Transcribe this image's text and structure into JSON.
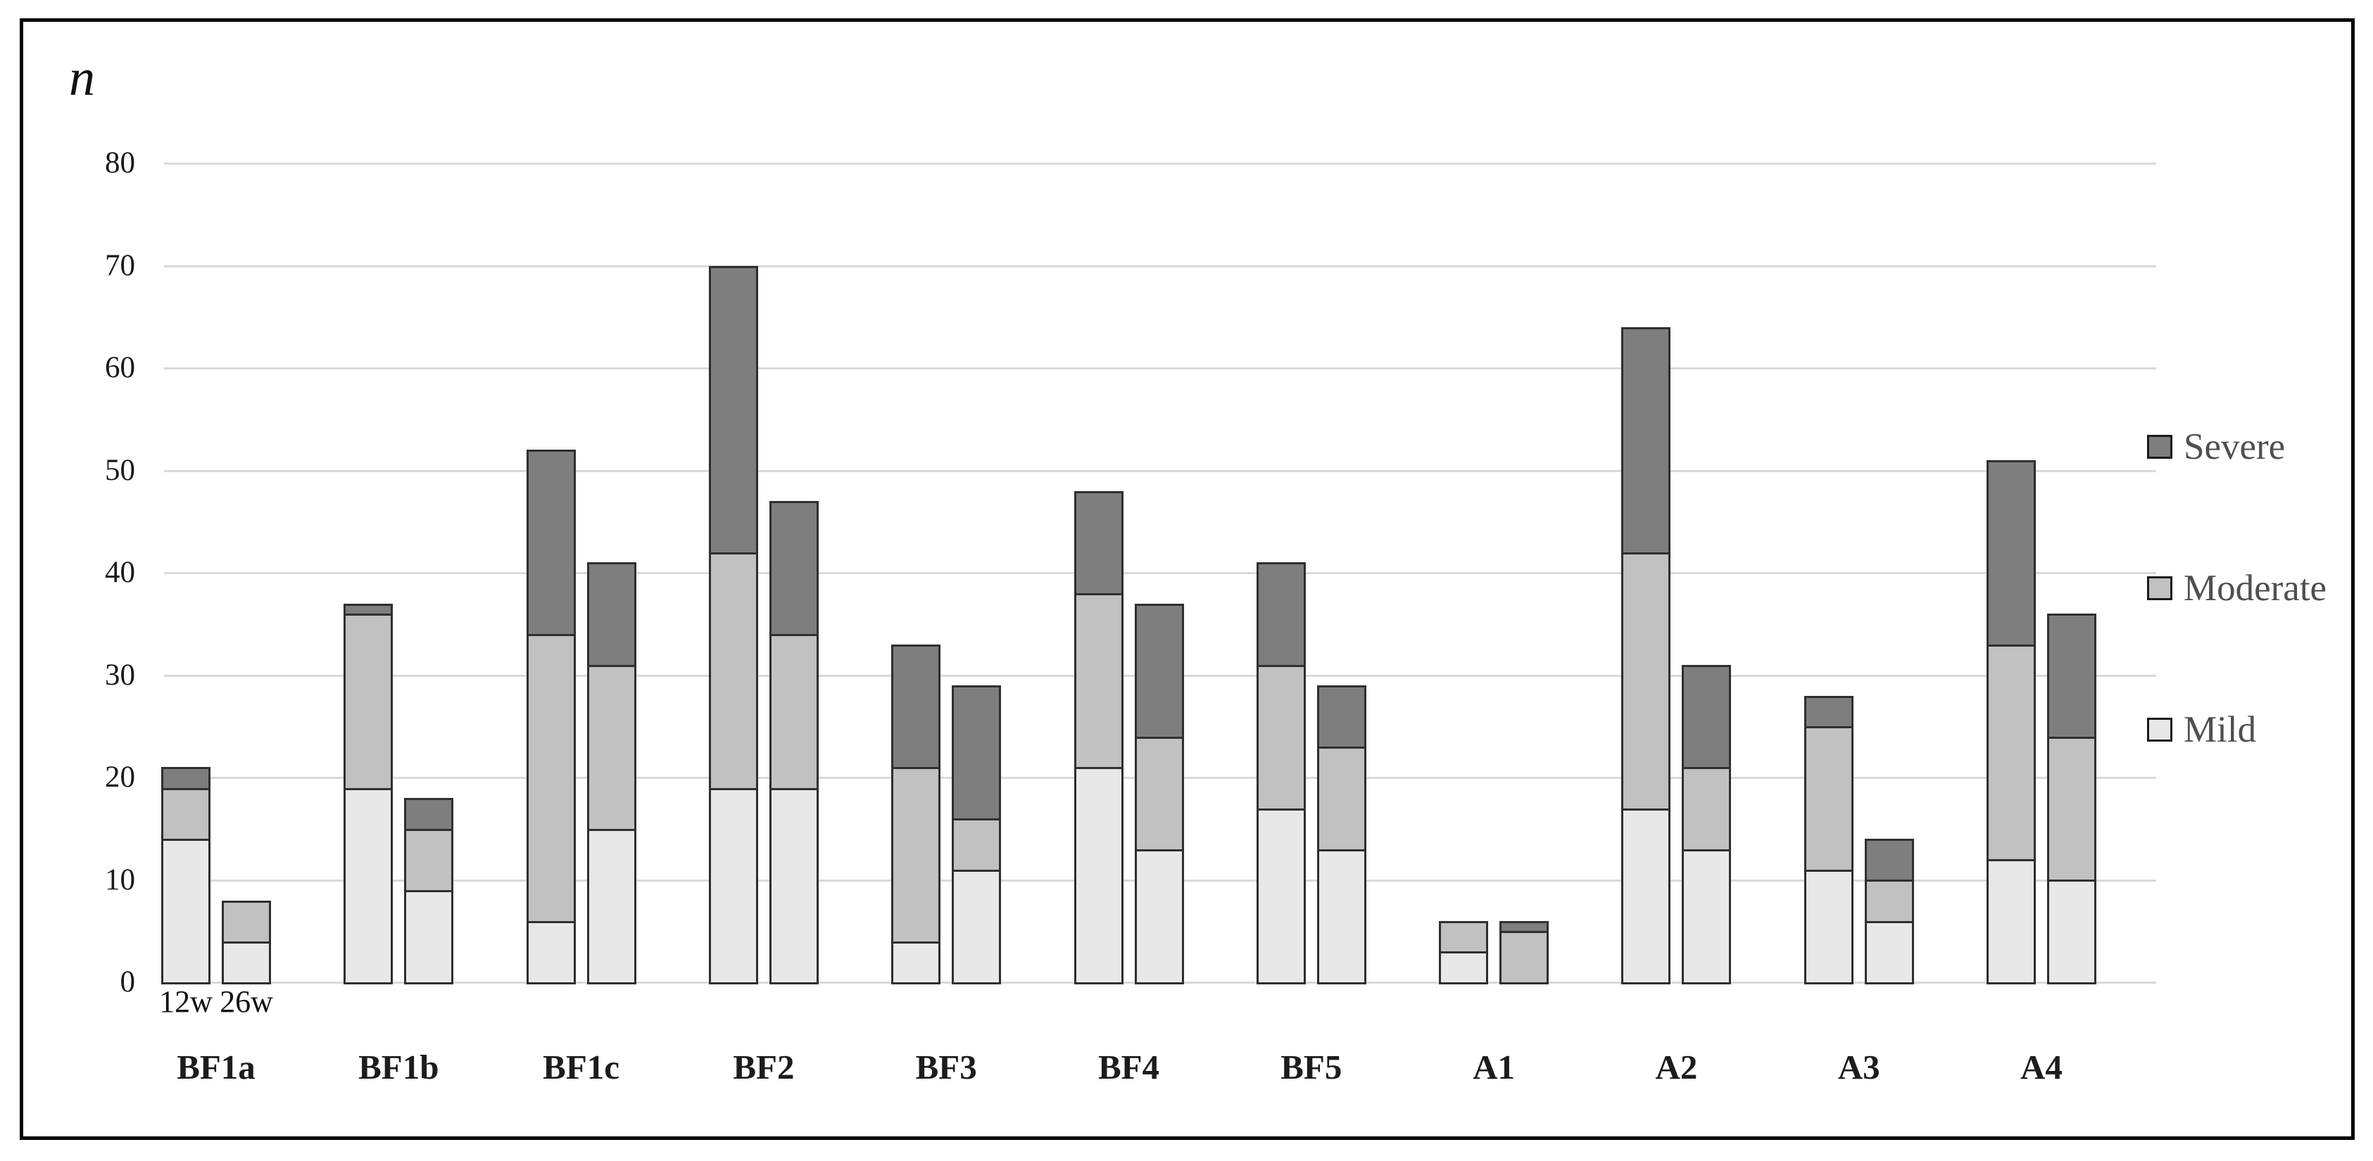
{
  "figure": {
    "ylabel": "n"
  },
  "chart_data": {
    "type": "bar",
    "subtype": "stacked-grouped",
    "title": "",
    "xlabel": "",
    "ylabel": "n",
    "ylim": [
      0,
      80
    ],
    "yticks": [
      0,
      10,
      20,
      30,
      40,
      50,
      60,
      70,
      80
    ],
    "grid": true,
    "legend_position": "right",
    "bar_labels": [
      "12w",
      "26w"
    ],
    "stack_order_bottom_to_top": [
      "mild",
      "moderate",
      "severe"
    ],
    "colors": {
      "mild": "#e8e8e8",
      "moderate": "#c1c1c1",
      "severe": "#7e7e7e",
      "segment_border": "#2f2f2f",
      "gridline": "#d9d9d9"
    },
    "legend": [
      {
        "name": "Severe",
        "key": "severe",
        "color": "#7e7e7e"
      },
      {
        "name": "Moderate",
        "key": "moderate",
        "color": "#c1c1c1"
      },
      {
        "name": "Mild",
        "key": "mild",
        "color": "#e8e8e8"
      }
    ],
    "categories": [
      "BF1a",
      "BF1b",
      "BF1c",
      "BF2",
      "BF3",
      "BF4",
      "BF5",
      "A1",
      "A2",
      "A3",
      "A4"
    ],
    "groups": [
      {
        "category": "BF1a",
        "bars": [
          {
            "label": "12w",
            "mild": 14,
            "moderate": 5,
            "severe": 2,
            "total": 21
          },
          {
            "label": "26w",
            "mild": 4,
            "moderate": 4,
            "severe": 0,
            "total": 8
          }
        ]
      },
      {
        "category": "BF1b",
        "bars": [
          {
            "label": "12w",
            "mild": 19,
            "moderate": 17,
            "severe": 1,
            "total": 37
          },
          {
            "label": "26w",
            "mild": 9,
            "moderate": 6,
            "severe": 3,
            "total": 18
          }
        ]
      },
      {
        "category": "BF1c",
        "bars": [
          {
            "label": "12w",
            "mild": 6,
            "moderate": 28,
            "severe": 18,
            "total": 52
          },
          {
            "label": "26w",
            "mild": 15,
            "moderate": 16,
            "severe": 10,
            "total": 41
          }
        ]
      },
      {
        "category": "BF2",
        "bars": [
          {
            "label": "12w",
            "mild": 19,
            "moderate": 23,
            "severe": 28,
            "total": 70
          },
          {
            "label": "26w",
            "mild": 19,
            "moderate": 15,
            "severe": 13,
            "total": 47
          }
        ]
      },
      {
        "category": "BF3",
        "bars": [
          {
            "label": "12w",
            "mild": 4,
            "moderate": 17,
            "severe": 12,
            "total": 33
          },
          {
            "label": "26w",
            "mild": 11,
            "moderate": 5,
            "severe": 13,
            "total": 29
          }
        ]
      },
      {
        "category": "BF4",
        "bars": [
          {
            "label": "12w",
            "mild": 21,
            "moderate": 17,
            "severe": 10,
            "total": 48
          },
          {
            "label": "26w",
            "mild": 13,
            "moderate": 11,
            "severe": 13,
            "total": 37
          }
        ]
      },
      {
        "category": "BF5",
        "bars": [
          {
            "label": "12w",
            "mild": 17,
            "moderate": 14,
            "severe": 10,
            "total": 41
          },
          {
            "label": "26w",
            "mild": 13,
            "moderate": 10,
            "severe": 6,
            "total": 29
          }
        ]
      },
      {
        "category": "A1",
        "bars": [
          {
            "label": "12w",
            "mild": 3,
            "moderate": 3,
            "severe": 0,
            "total": 6
          },
          {
            "label": "26w",
            "mild": 0,
            "moderate": 5,
            "severe": 1,
            "total": 6
          }
        ]
      },
      {
        "category": "A2",
        "bars": [
          {
            "label": "12w",
            "mild": 17,
            "moderate": 25,
            "severe": 22,
            "total": 64
          },
          {
            "label": "26w",
            "mild": 13,
            "moderate": 8,
            "severe": 10,
            "total": 31
          }
        ]
      },
      {
        "category": "A3",
        "bars": [
          {
            "label": "12w",
            "mild": 11,
            "moderate": 14,
            "severe": 3,
            "total": 28
          },
          {
            "label": "26w",
            "mild": 6,
            "moderate": 4,
            "severe": 4,
            "total": 14
          }
        ]
      },
      {
        "category": "A4",
        "bars": [
          {
            "label": "12w",
            "mild": 12,
            "moderate": 21,
            "severe": 18,
            "total": 51
          },
          {
            "label": "26w",
            "mild": 10,
            "moderate": 14,
            "severe": 12,
            "total": 36
          }
        ]
      }
    ]
  }
}
